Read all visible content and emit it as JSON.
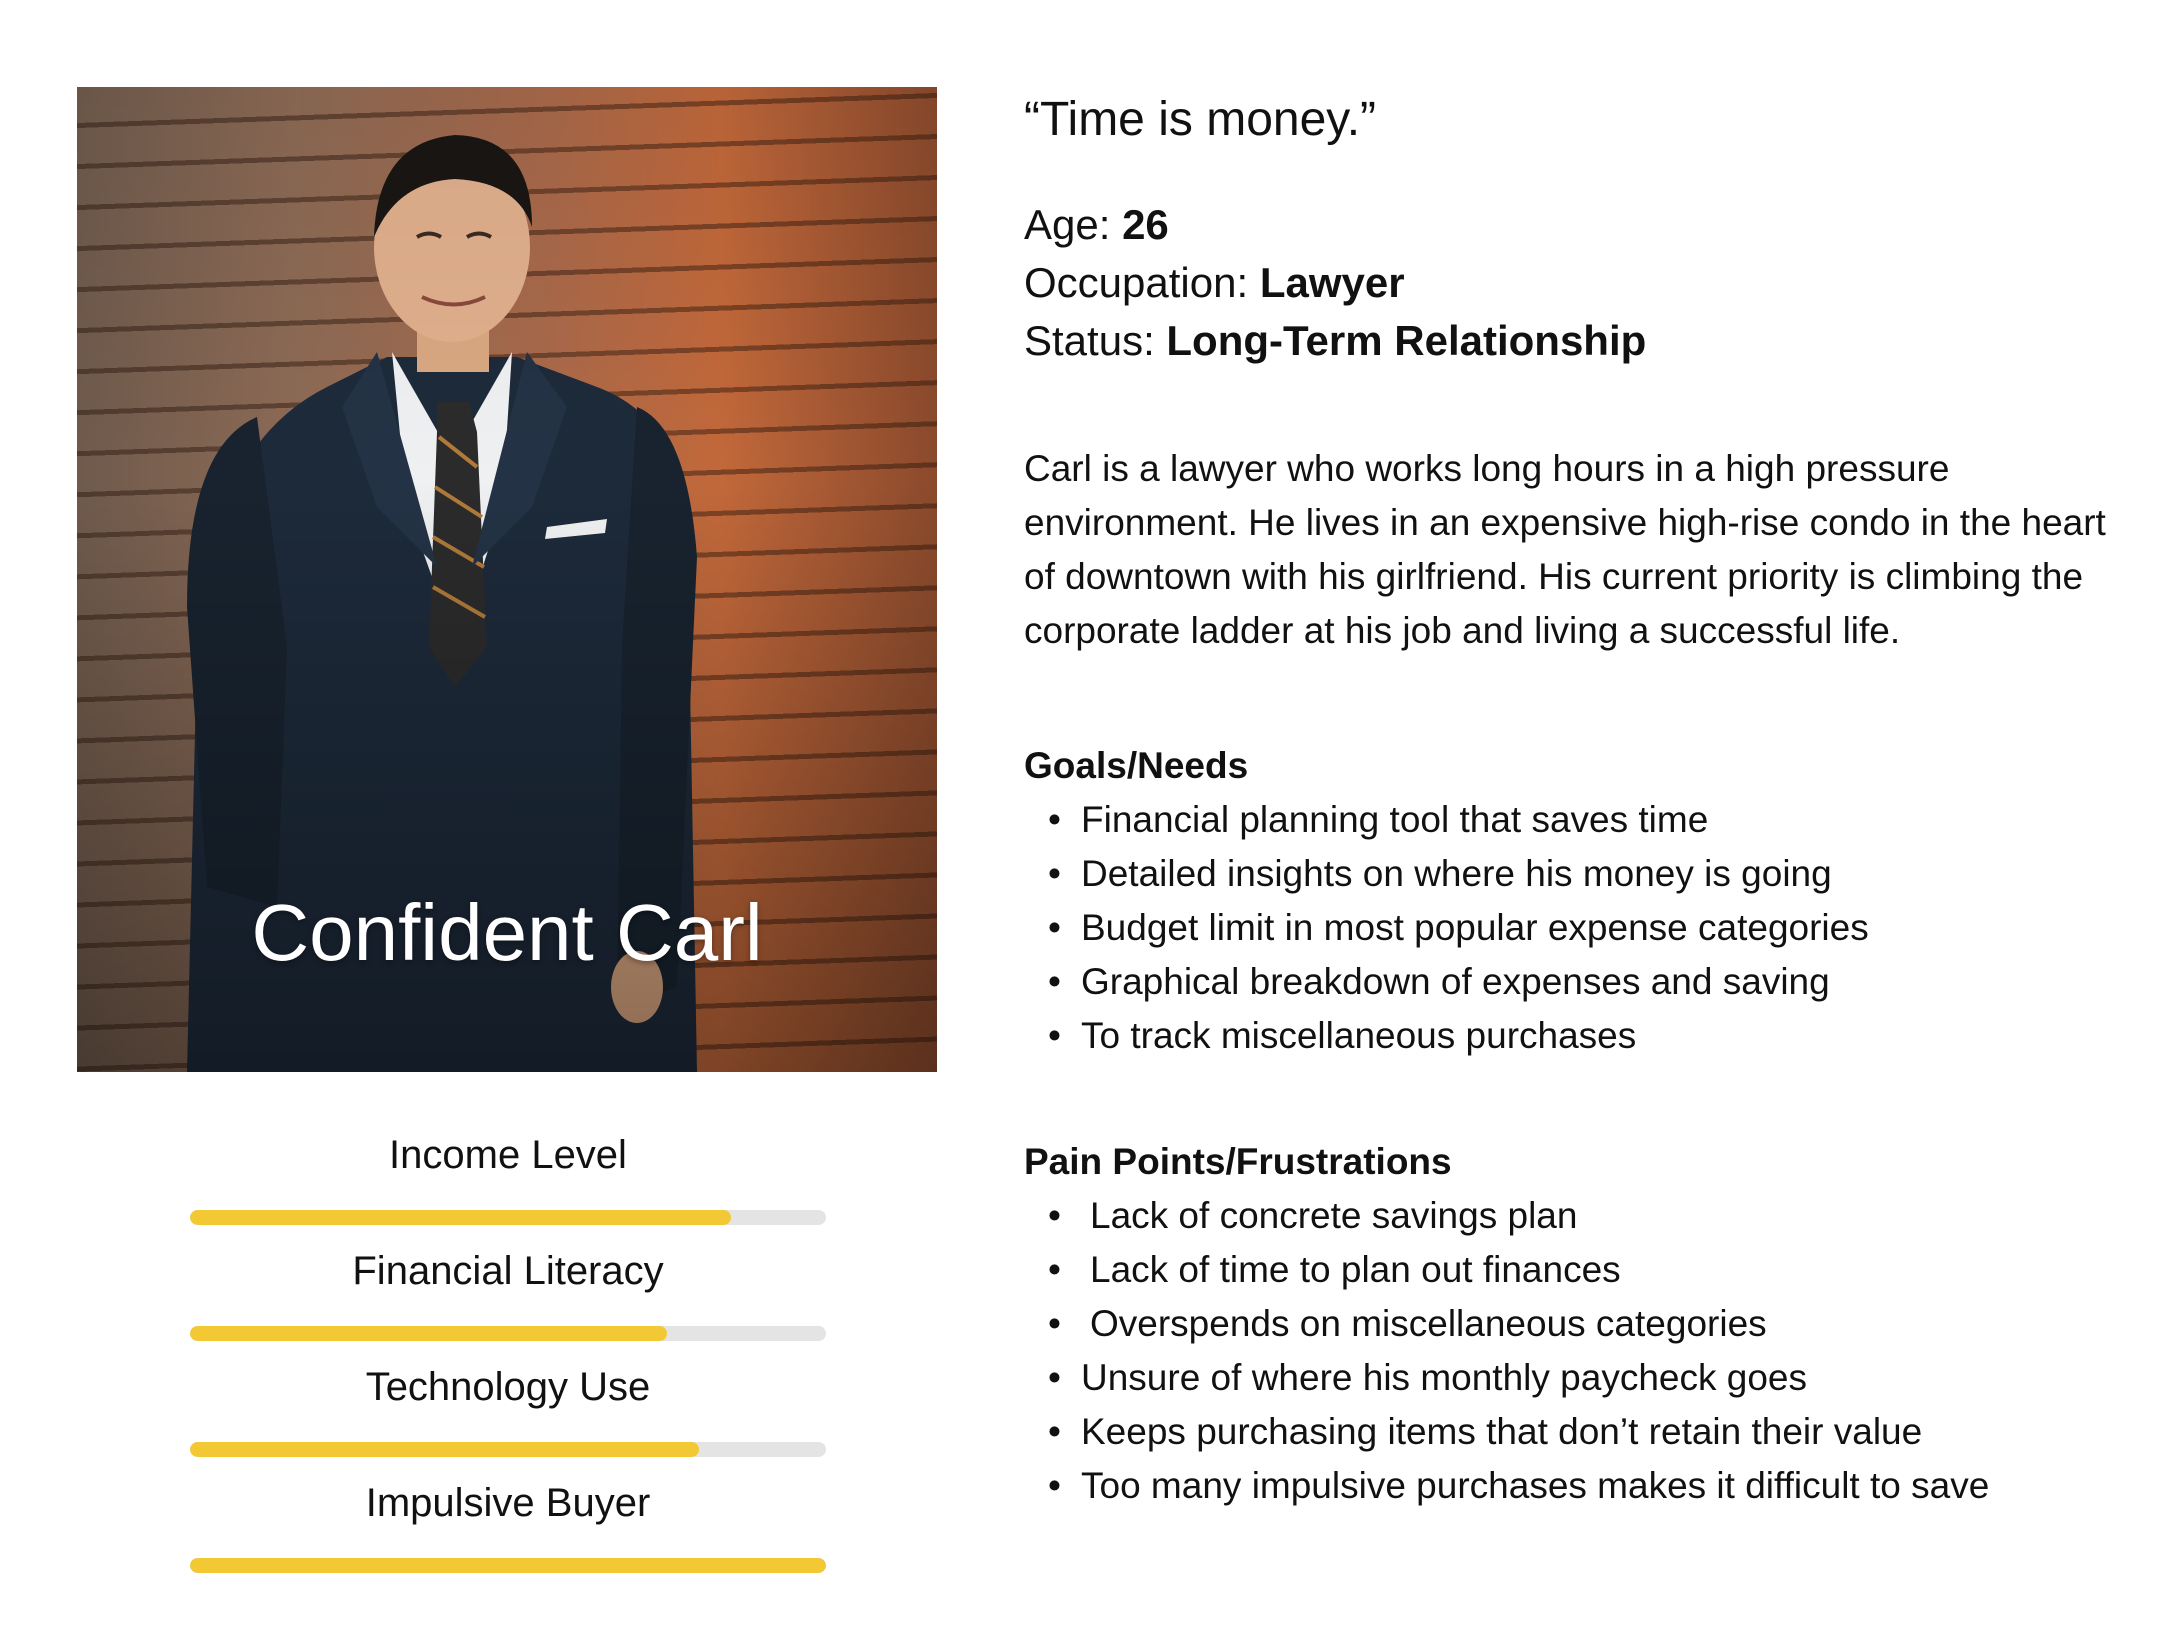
{
  "persona": {
    "name": "Confident Carl",
    "quote": "“Time is money.”",
    "age_label": "Age: ",
    "age_value": "26",
    "occupation_label": "Occupation: ",
    "occupation_value": "Lawyer",
    "status_label": "Status: ",
    "status_value": "Long-Term Relationship",
    "bio": "Carl is a lawyer who works long hours in a high pressure environment. He lives in an expensive high-rise condo in the heart of downtown with his girlfriend. His current priority is climbing the corporate ladder at his job and living a successful life."
  },
  "meters": [
    {
      "label": "Income Level",
      "value_percent": 85
    },
    {
      "label": "Financial Literacy",
      "value_percent": 75
    },
    {
      "label": "Technology Use",
      "value_percent": 80
    },
    {
      "label": "Impulsive Buyer",
      "value_percent": 100
    }
  ],
  "goals": {
    "title": "Goals/Needs",
    "items": [
      "Financial planning tool that saves time",
      "Detailed insights on where his money is going",
      "Budget limit in most popular expense categories",
      "Graphical breakdown of expenses and saving",
      "To track miscellaneous purchases"
    ]
  },
  "pains": {
    "title": "Pain Points/Frustrations",
    "items": [
      "Lack of concrete savings plan",
      "Lack of time to plan out finances",
      "Overspends on miscellaneous categories",
      "Unsure of where his monthly paycheck goes",
      "Keeps purchasing items that don’t retain their value",
      "Too many impulsive purchases makes it difficult to save"
    ]
  },
  "bullet": "•",
  "colors": {
    "meter_fill": "#f2c935",
    "meter_track": "#e4e4e4"
  }
}
